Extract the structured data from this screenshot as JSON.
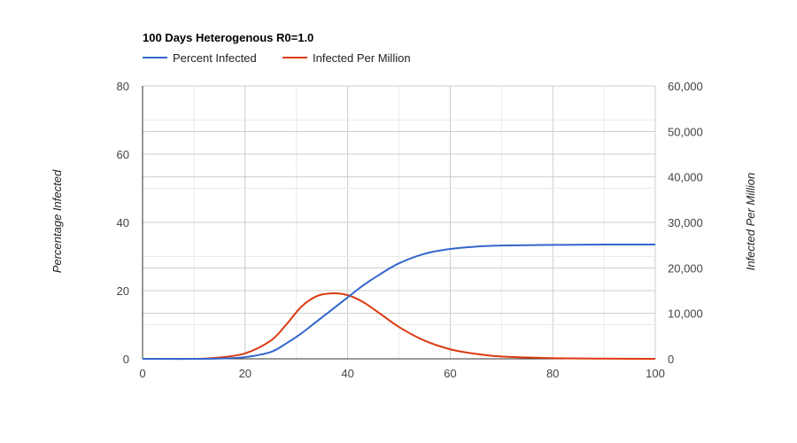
{
  "chart_data": {
    "type": "line",
    "title": "100 Days Heterogenous R0=1.0",
    "xlabel": "",
    "ylabel": "Percentage Infected",
    "y2label": "Infected Per Million",
    "xlim": [
      0,
      100
    ],
    "ylim": [
      0,
      80
    ],
    "y2lim": [
      0,
      60000
    ],
    "x_ticks": [
      "0",
      "20",
      "40",
      "60",
      "80",
      "100"
    ],
    "y_ticks": [
      "0",
      "20",
      "40",
      "60",
      "80"
    ],
    "y2_ticks": [
      "0",
      "10,000",
      "20,000",
      "30,000",
      "40,000",
      "50,000",
      "60,000"
    ],
    "legend_position": "top-left",
    "grid": true,
    "x": [
      0,
      10,
      15,
      20,
      25,
      28,
      31,
      34,
      37,
      40,
      43,
      46,
      50,
      55,
      60,
      65,
      70,
      80,
      90,
      100
    ],
    "series": [
      {
        "name": "Percent Infected",
        "axis": "left",
        "color": "#3366cc",
        "values": [
          0,
          0,
          0.1,
          0.5,
          2,
          4.5,
          7.5,
          11,
          14.5,
          18,
          21.5,
          24.5,
          28,
          30.8,
          32.2,
          32.9,
          33.2,
          33.4,
          33.5,
          33.5
        ]
      },
      {
        "name": "Infected Per Million",
        "axis": "right",
        "color": "#dc3912",
        "values": [
          0,
          0,
          300,
          1200,
          4000,
          7500,
          11500,
          13800,
          14400,
          14000,
          12500,
          10200,
          7000,
          4000,
          2100,
          1100,
          500,
          150,
          40,
          10
        ]
      }
    ]
  }
}
